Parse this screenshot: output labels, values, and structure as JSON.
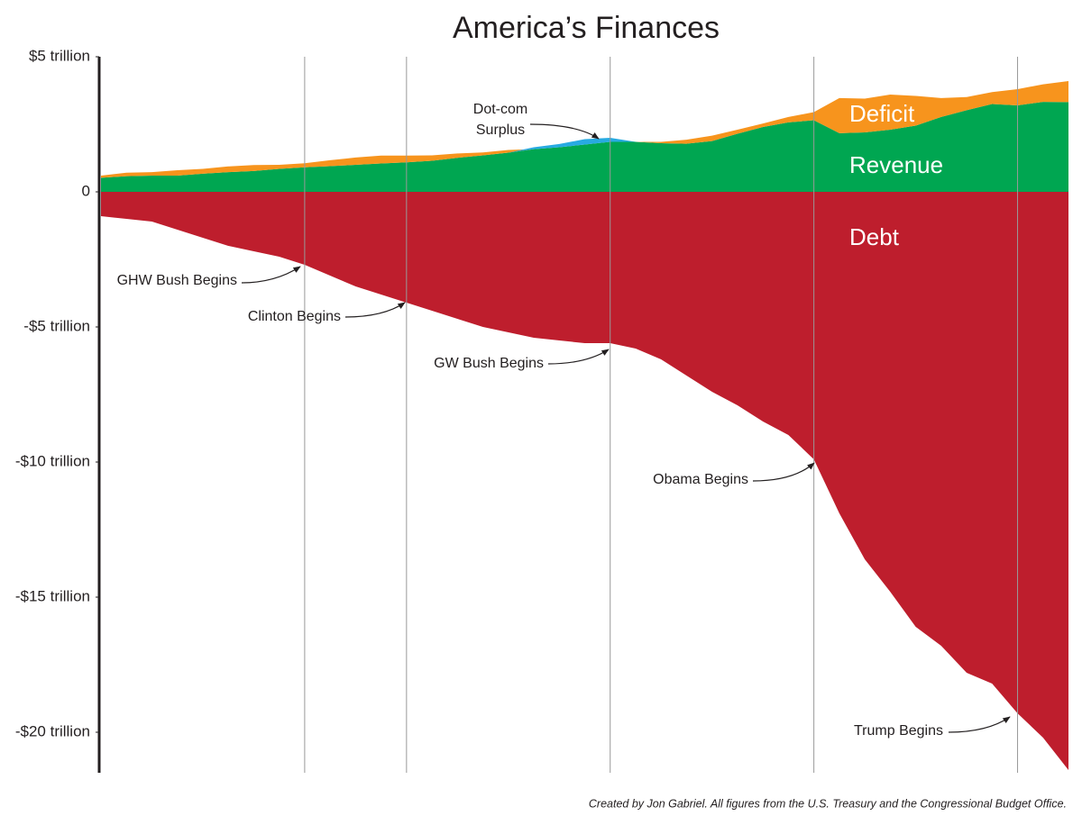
{
  "chart_data": {
    "type": "stacked-area",
    "title": "America’s Finances",
    "ylim": [
      -21.5,
      5
    ],
    "yticks": [
      {
        "value": 5,
        "label": "$5 trillion"
      },
      0,
      {
        "value": -5,
        "label": "-$5 trillion"
      },
      {
        "value": -10,
        "label": "-$10 trillion"
      },
      {
        "value": -15,
        "label": "-$15 trillion"
      },
      {
        "value": -20,
        "label": "-$20 trillion"
      }
    ],
    "series": [
      {
        "name": "Revenue",
        "color": "#00a651",
        "values": [
          0.52,
          0.58,
          0.6,
          0.6,
          0.67,
          0.73,
          0.77,
          0.85,
          0.91,
          0.95,
          1.0,
          1.05,
          1.09,
          1.15,
          1.26,
          1.35,
          1.45,
          1.58,
          1.65,
          1.75,
          1.85,
          1.85,
          1.8,
          1.78,
          1.88,
          2.15,
          2.4,
          2.57,
          2.65,
          2.17,
          2.2,
          2.3,
          2.45,
          2.77,
          3.02,
          3.25,
          3.2,
          3.33,
          3.32
        ]
      },
      {
        "name": "Deficit",
        "color": "#f7941d",
        "values": [
          0.08,
          0.13,
          0.13,
          0.2,
          0.18,
          0.21,
          0.22,
          0.15,
          0.15,
          0.22,
          0.27,
          0.29,
          0.25,
          0.2,
          0.16,
          0.11,
          0.1,
          0,
          0,
          0,
          0,
          0,
          0.05,
          0.15,
          0.2,
          0.15,
          0.13,
          0.2,
          0.3,
          1.3,
          1.25,
          1.3,
          1.1,
          0.7,
          0.49,
          0.44,
          0.6,
          0.65,
          0.78
        ]
      },
      {
        "color": "#27aae1",
        "values": [
          0,
          0,
          0,
          0,
          0,
          0,
          0,
          0,
          0,
          0,
          0,
          0,
          0,
          0,
          0,
          0,
          0,
          0.07,
          0.12,
          0.2,
          0.15,
          0,
          0,
          0,
          0,
          0,
          0,
          0,
          0,
          0,
          0,
          0,
          0,
          0,
          0,
          0,
          0,
          0,
          0
        ]
      },
      {
        "name": "Debt",
        "color": "#be1e2d",
        "values": [
          -0.9,
          -1.0,
          -1.1,
          -1.4,
          -1.7,
          -2.0,
          -2.2,
          -2.4,
          -2.7,
          -3.1,
          -3.5,
          -3.8,
          -4.1,
          -4.4,
          -4.7,
          -5.0,
          -5.2,
          -5.4,
          -5.5,
          -5.6,
          -5.6,
          -5.8,
          -6.2,
          -6.8,
          -7.4,
          -7.9,
          -8.5,
          -9.0,
          -9.9,
          -11.9,
          -13.6,
          -14.8,
          -16.1,
          -16.8,
          -17.8,
          -18.2,
          -19.3,
          -20.2,
          -21.4
        ]
      }
    ],
    "annotations": [
      "Dot-com\nSurplus",
      "GHW Bush Begins",
      "Clinton Begins",
      "GW Bush Begins",
      "Obama Begins",
      "Trump Begins"
    ],
    "source": "Created by Jon Gabriel. All figures from the U.S. Treasury and the Congressional Budget Office."
  }
}
